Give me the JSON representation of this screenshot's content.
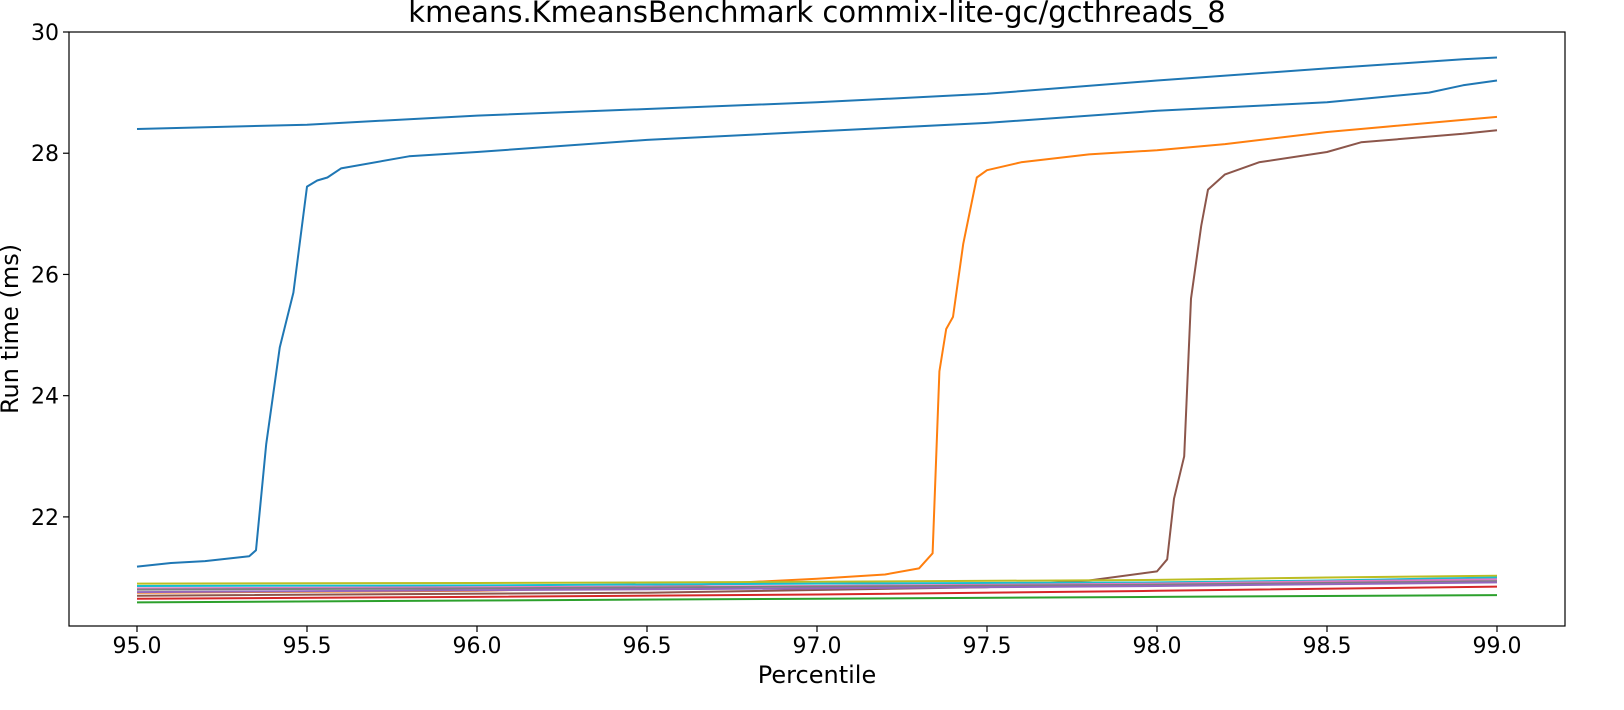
{
  "chart_data": {
    "type": "line",
    "title": "kmeans.KmeansBenchmark commix-lite-gc/gcthreads_8",
    "xlabel": "Percentile",
    "ylabel": "Run time (ms)",
    "xlim": [
      94.8,
      99.2
    ],
    "ylim": [
      20.2,
      30.0
    ],
    "xticks": [
      95.0,
      95.5,
      96.0,
      96.5,
      97.0,
      97.5,
      98.0,
      98.5,
      99.0
    ],
    "xtick_labels": [
      "95.0",
      "95.5",
      "96.0",
      "96.5",
      "97.0",
      "97.5",
      "98.0",
      "98.5",
      "99.0"
    ],
    "yticks": [
      22,
      24,
      26,
      28,
      30
    ],
    "ytick_labels": [
      "22",
      "24",
      "26",
      "28",
      "30"
    ],
    "grid": false,
    "legend": "none",
    "series": [
      {
        "color": "#1f77b4",
        "x": [
          95.0,
          95.5,
          96.0,
          96.5,
          97.0,
          97.5,
          98.0,
          98.5,
          98.9,
          99.0
        ],
        "y": [
          28.4,
          28.47,
          28.62,
          28.73,
          28.84,
          28.98,
          29.2,
          29.4,
          29.55,
          29.58
        ]
      },
      {
        "color": "#1f77b4",
        "x": [
          95.0,
          95.1,
          95.2,
          95.33,
          95.35,
          95.38,
          95.42,
          95.46,
          95.5,
          95.53,
          95.56,
          95.6,
          95.8,
          96.0,
          96.5,
          97.0,
          97.5,
          98.0,
          98.5,
          98.8,
          98.9,
          99.0
        ],
        "y": [
          21.18,
          21.24,
          21.27,
          21.35,
          21.45,
          23.2,
          24.8,
          25.7,
          27.45,
          27.55,
          27.6,
          27.75,
          27.95,
          28.02,
          28.22,
          28.36,
          28.5,
          28.7,
          28.84,
          29.0,
          29.12,
          29.2
        ]
      },
      {
        "color": "#ff7f0e",
        "x": [
          95.0,
          96.0,
          96.5,
          97.0,
          97.2,
          97.3,
          97.34,
          97.36,
          97.38,
          97.4,
          97.43,
          97.47,
          97.5,
          97.6,
          97.8,
          98.0,
          98.2,
          98.5,
          98.9,
          99.0
        ],
        "y": [
          20.75,
          20.78,
          20.84,
          20.98,
          21.05,
          21.15,
          21.4,
          24.4,
          25.1,
          25.3,
          26.5,
          27.6,
          27.72,
          27.85,
          27.98,
          28.05,
          28.15,
          28.35,
          28.55,
          28.6
        ]
      },
      {
        "color": "#8c564b",
        "x": [
          95.0,
          96.5,
          97.5,
          97.8,
          98.0,
          98.03,
          98.05,
          98.08,
          98.1,
          98.13,
          98.15,
          98.2,
          98.3,
          98.5,
          98.6,
          98.9,
          99.0
        ],
        "y": [
          20.7,
          20.75,
          20.84,
          20.95,
          21.1,
          21.3,
          22.3,
          23.0,
          25.6,
          26.8,
          27.4,
          27.65,
          27.85,
          28.02,
          28.18,
          28.32,
          28.38
        ]
      },
      {
        "color": "#bcbd22",
        "x": [
          95.0,
          96.0,
          97.0,
          98.0,
          98.5,
          99.0
        ],
        "y": [
          20.9,
          20.91,
          20.93,
          20.96,
          21.0,
          21.03
        ]
      },
      {
        "color": "#17becf",
        "x": [
          95.0,
          96.0,
          97.0,
          98.0,
          98.5,
          99.0
        ],
        "y": [
          20.86,
          20.87,
          20.9,
          20.92,
          20.95,
          21.0
        ]
      },
      {
        "color": "#e377c2",
        "x": [
          95.0,
          96.0,
          97.0,
          98.0,
          99.0
        ],
        "y": [
          20.82,
          20.84,
          20.86,
          20.9,
          20.97
        ]
      },
      {
        "color": "#7f7f7f",
        "x": [
          95.0,
          96.0,
          97.0,
          98.0,
          99.0
        ],
        "y": [
          20.8,
          20.82,
          20.85,
          20.88,
          20.94
        ]
      },
      {
        "color": "#9467bd",
        "x": [
          95.0,
          96.0,
          97.0,
          98.0,
          99.0
        ],
        "y": [
          20.76,
          20.79,
          20.82,
          20.86,
          20.92
        ]
      },
      {
        "color": "#d62728",
        "x": [
          95.0,
          96.0,
          97.0,
          98.0,
          99.0
        ],
        "y": [
          20.65,
          20.68,
          20.72,
          20.78,
          20.85
        ]
      },
      {
        "color": "#2ca02c",
        "x": [
          95.0,
          96.0,
          97.0,
          98.0,
          99.0
        ],
        "y": [
          20.59,
          20.62,
          20.65,
          20.68,
          20.71
        ]
      }
    ]
  }
}
